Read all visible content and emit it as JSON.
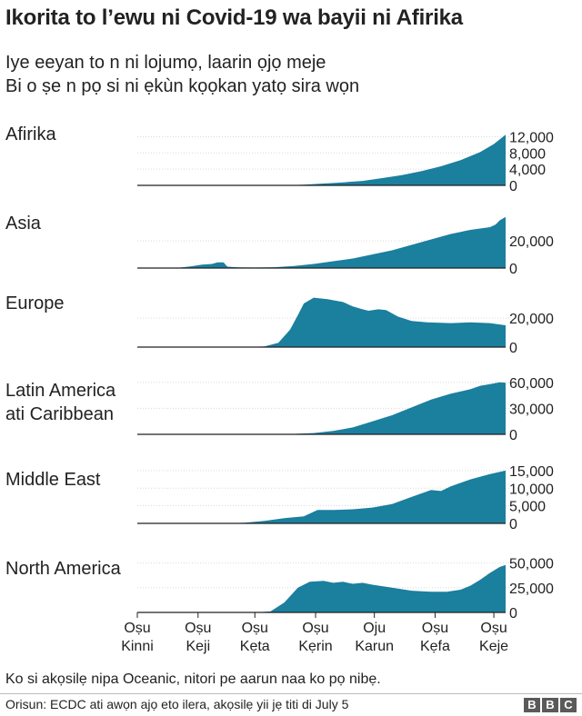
{
  "title": "Ikorita to l’ewu ni Covid-19 wa bayii ni Afirika",
  "subtitle_line1": "Iye eeyan to n ni lojumọ, laarin ọjọ meje",
  "subtitle_line2": "Bi o ṣe n pọ si ni ẹkùn kọọkan yatọ sira wọn",
  "footnote": "Ko si akọsilẹ nipa Oceanic, nitori pe aarun naa ko pọ nibẹ.",
  "source": "Orisun: ECDC ati awọn ajọ eto ilera, akọsilẹ yii jẹ titi di July 5",
  "logo_letters": [
    "B",
    "B",
    "C"
  ],
  "colors": {
    "area": "#1b7f9e",
    "axis": "#222222",
    "grid": "#d9d9d9"
  },
  "chart_data": {
    "type": "area",
    "x_unit": "days since 31 Dec 2019",
    "x_range": [
      0,
      188
    ],
    "x_ticks": [
      {
        "x": 0,
        "lines": [
          "Oṣu",
          "Kinni"
        ]
      },
      {
        "x": 31,
        "lines": [
          "Oṣu",
          "Keji"
        ]
      },
      {
        "x": 60,
        "lines": [
          "Oṣu",
          "Kẹta"
        ]
      },
      {
        "x": 91,
        "lines": [
          "Oṣu",
          "Kẹrin"
        ]
      },
      {
        "x": 121,
        "lines": [
          "Oju",
          "Karun"
        ]
      },
      {
        "x": 152,
        "lines": [
          "Oṣu",
          "Kẹfa"
        ]
      },
      {
        "x": 182,
        "lines": [
          "Oṣu",
          "Keje"
        ]
      }
    ],
    "panels": [
      {
        "name": "Afirika",
        "name_lines": [
          "Afirika"
        ],
        "ylim": [
          0,
          13000
        ],
        "yticks": [
          0,
          4000,
          8000,
          12000
        ],
        "ytick_labels": [
          "0",
          "4,000",
          "8,000",
          "12,000"
        ],
        "points": [
          [
            0,
            0
          ],
          [
            75,
            0
          ],
          [
            85,
            150
          ],
          [
            95,
            450
          ],
          [
            105,
            750
          ],
          [
            115,
            1100
          ],
          [
            125,
            1800
          ],
          [
            135,
            2500
          ],
          [
            145,
            3500
          ],
          [
            155,
            4700
          ],
          [
            165,
            6200
          ],
          [
            175,
            8200
          ],
          [
            182,
            10200
          ],
          [
            188,
            12500
          ]
        ]
      },
      {
        "name": "Asia",
        "name_lines": [
          "Asia"
        ],
        "ylim": [
          0,
          40000
        ],
        "yticks": [
          0,
          20000
        ],
        "ytick_labels": [
          "0",
          "20,000"
        ],
        "points": [
          [
            0,
            0
          ],
          [
            20,
            100
          ],
          [
            27,
            1200
          ],
          [
            33,
            2500
          ],
          [
            38,
            3000
          ],
          [
            41,
            4200
          ],
          [
            44,
            4200
          ],
          [
            46,
            1000
          ],
          [
            52,
            500
          ],
          [
            60,
            400
          ],
          [
            70,
            600
          ],
          [
            80,
            1500
          ],
          [
            90,
            3000
          ],
          [
            100,
            5000
          ],
          [
            110,
            7000
          ],
          [
            120,
            10000
          ],
          [
            130,
            13000
          ],
          [
            140,
            17000
          ],
          [
            150,
            21000
          ],
          [
            160,
            25000
          ],
          [
            170,
            28000
          ],
          [
            180,
            30000
          ],
          [
            183,
            32000
          ],
          [
            185,
            35000
          ],
          [
            188,
            37500
          ]
        ]
      },
      {
        "name": "Europe",
        "name_lines": [
          "Europe"
        ],
        "ylim": [
          0,
          37500
        ],
        "yticks": [
          0,
          20000
        ],
        "ytick_labels": [
          "0",
          "20,000"
        ],
        "points": [
          [
            0,
            0
          ],
          [
            55,
            0
          ],
          [
            65,
            500
          ],
          [
            72,
            3000
          ],
          [
            78,
            12000
          ],
          [
            82,
            22000
          ],
          [
            85,
            30000
          ],
          [
            90,
            34000
          ],
          [
            97,
            33000
          ],
          [
            105,
            31000
          ],
          [
            110,
            28000
          ],
          [
            115,
            26000
          ],
          [
            118,
            25000
          ],
          [
            123,
            26000
          ],
          [
            127,
            25500
          ],
          [
            133,
            21000
          ],
          [
            140,
            18000
          ],
          [
            148,
            17000
          ],
          [
            160,
            16500
          ],
          [
            170,
            17000
          ],
          [
            180,
            16500
          ],
          [
            188,
            15000
          ]
        ]
      },
      {
        "name": "Latin America ati Caribbean",
        "name_lines": [
          "Latin America",
          "ati Caribbean"
        ],
        "ylim": [
          0,
          65000
        ],
        "yticks": [
          0,
          30000,
          60000
        ],
        "ytick_labels": [
          "0",
          "30,000",
          "60,000"
        ],
        "points": [
          [
            0,
            0
          ],
          [
            70,
            0
          ],
          [
            80,
            500
          ],
          [
            90,
            1500
          ],
          [
            100,
            4000
          ],
          [
            110,
            8000
          ],
          [
            120,
            15000
          ],
          [
            130,
            22000
          ],
          [
            140,
            31000
          ],
          [
            150,
            40000
          ],
          [
            160,
            47000
          ],
          [
            170,
            52000
          ],
          [
            175,
            56000
          ],
          [
            180,
            58000
          ],
          [
            185,
            60000
          ],
          [
            188,
            59500
          ]
        ]
      },
      {
        "name": "Middle East",
        "name_lines": [
          "Middle East"
        ],
        "ylim": [
          0,
          16000
        ],
        "yticks": [
          0,
          5000,
          10000,
          15000
        ],
        "ytick_labels": [
          "0",
          "5,000",
          "10,000",
          "15,000"
        ],
        "points": [
          [
            0,
            0
          ],
          [
            45,
            0
          ],
          [
            55,
            200
          ],
          [
            65,
            700
          ],
          [
            75,
            1500
          ],
          [
            85,
            2000
          ],
          [
            92,
            3800
          ],
          [
            100,
            3800
          ],
          [
            110,
            4000
          ],
          [
            120,
            4500
          ],
          [
            130,
            5500
          ],
          [
            140,
            7500
          ],
          [
            150,
            9500
          ],
          [
            155,
            9200
          ],
          [
            160,
            10500
          ],
          [
            170,
            12500
          ],
          [
            180,
            14000
          ],
          [
            188,
            15000
          ]
        ]
      },
      {
        "name": "North America",
        "name_lines": [
          "North America"
        ],
        "ylim": [
          0,
          57000
        ],
        "yticks": [
          0,
          25000,
          50000
        ],
        "ytick_labels": [
          "0",
          "25,000",
          "50,000"
        ],
        "points": [
          [
            0,
            0
          ],
          [
            60,
            0
          ],
          [
            68,
            1000
          ],
          [
            75,
            10000
          ],
          [
            82,
            25000
          ],
          [
            88,
            31000
          ],
          [
            95,
            32000
          ],
          [
            100,
            30000
          ],
          [
            105,
            31000
          ],
          [
            110,
            29000
          ],
          [
            115,
            30000
          ],
          [
            120,
            28000
          ],
          [
            130,
            25000
          ],
          [
            140,
            22000
          ],
          [
            150,
            21000
          ],
          [
            158,
            21000
          ],
          [
            165,
            23000
          ],
          [
            170,
            27000
          ],
          [
            175,
            33000
          ],
          [
            180,
            40000
          ],
          [
            185,
            46000
          ],
          [
            188,
            48000
          ]
        ]
      }
    ]
  }
}
